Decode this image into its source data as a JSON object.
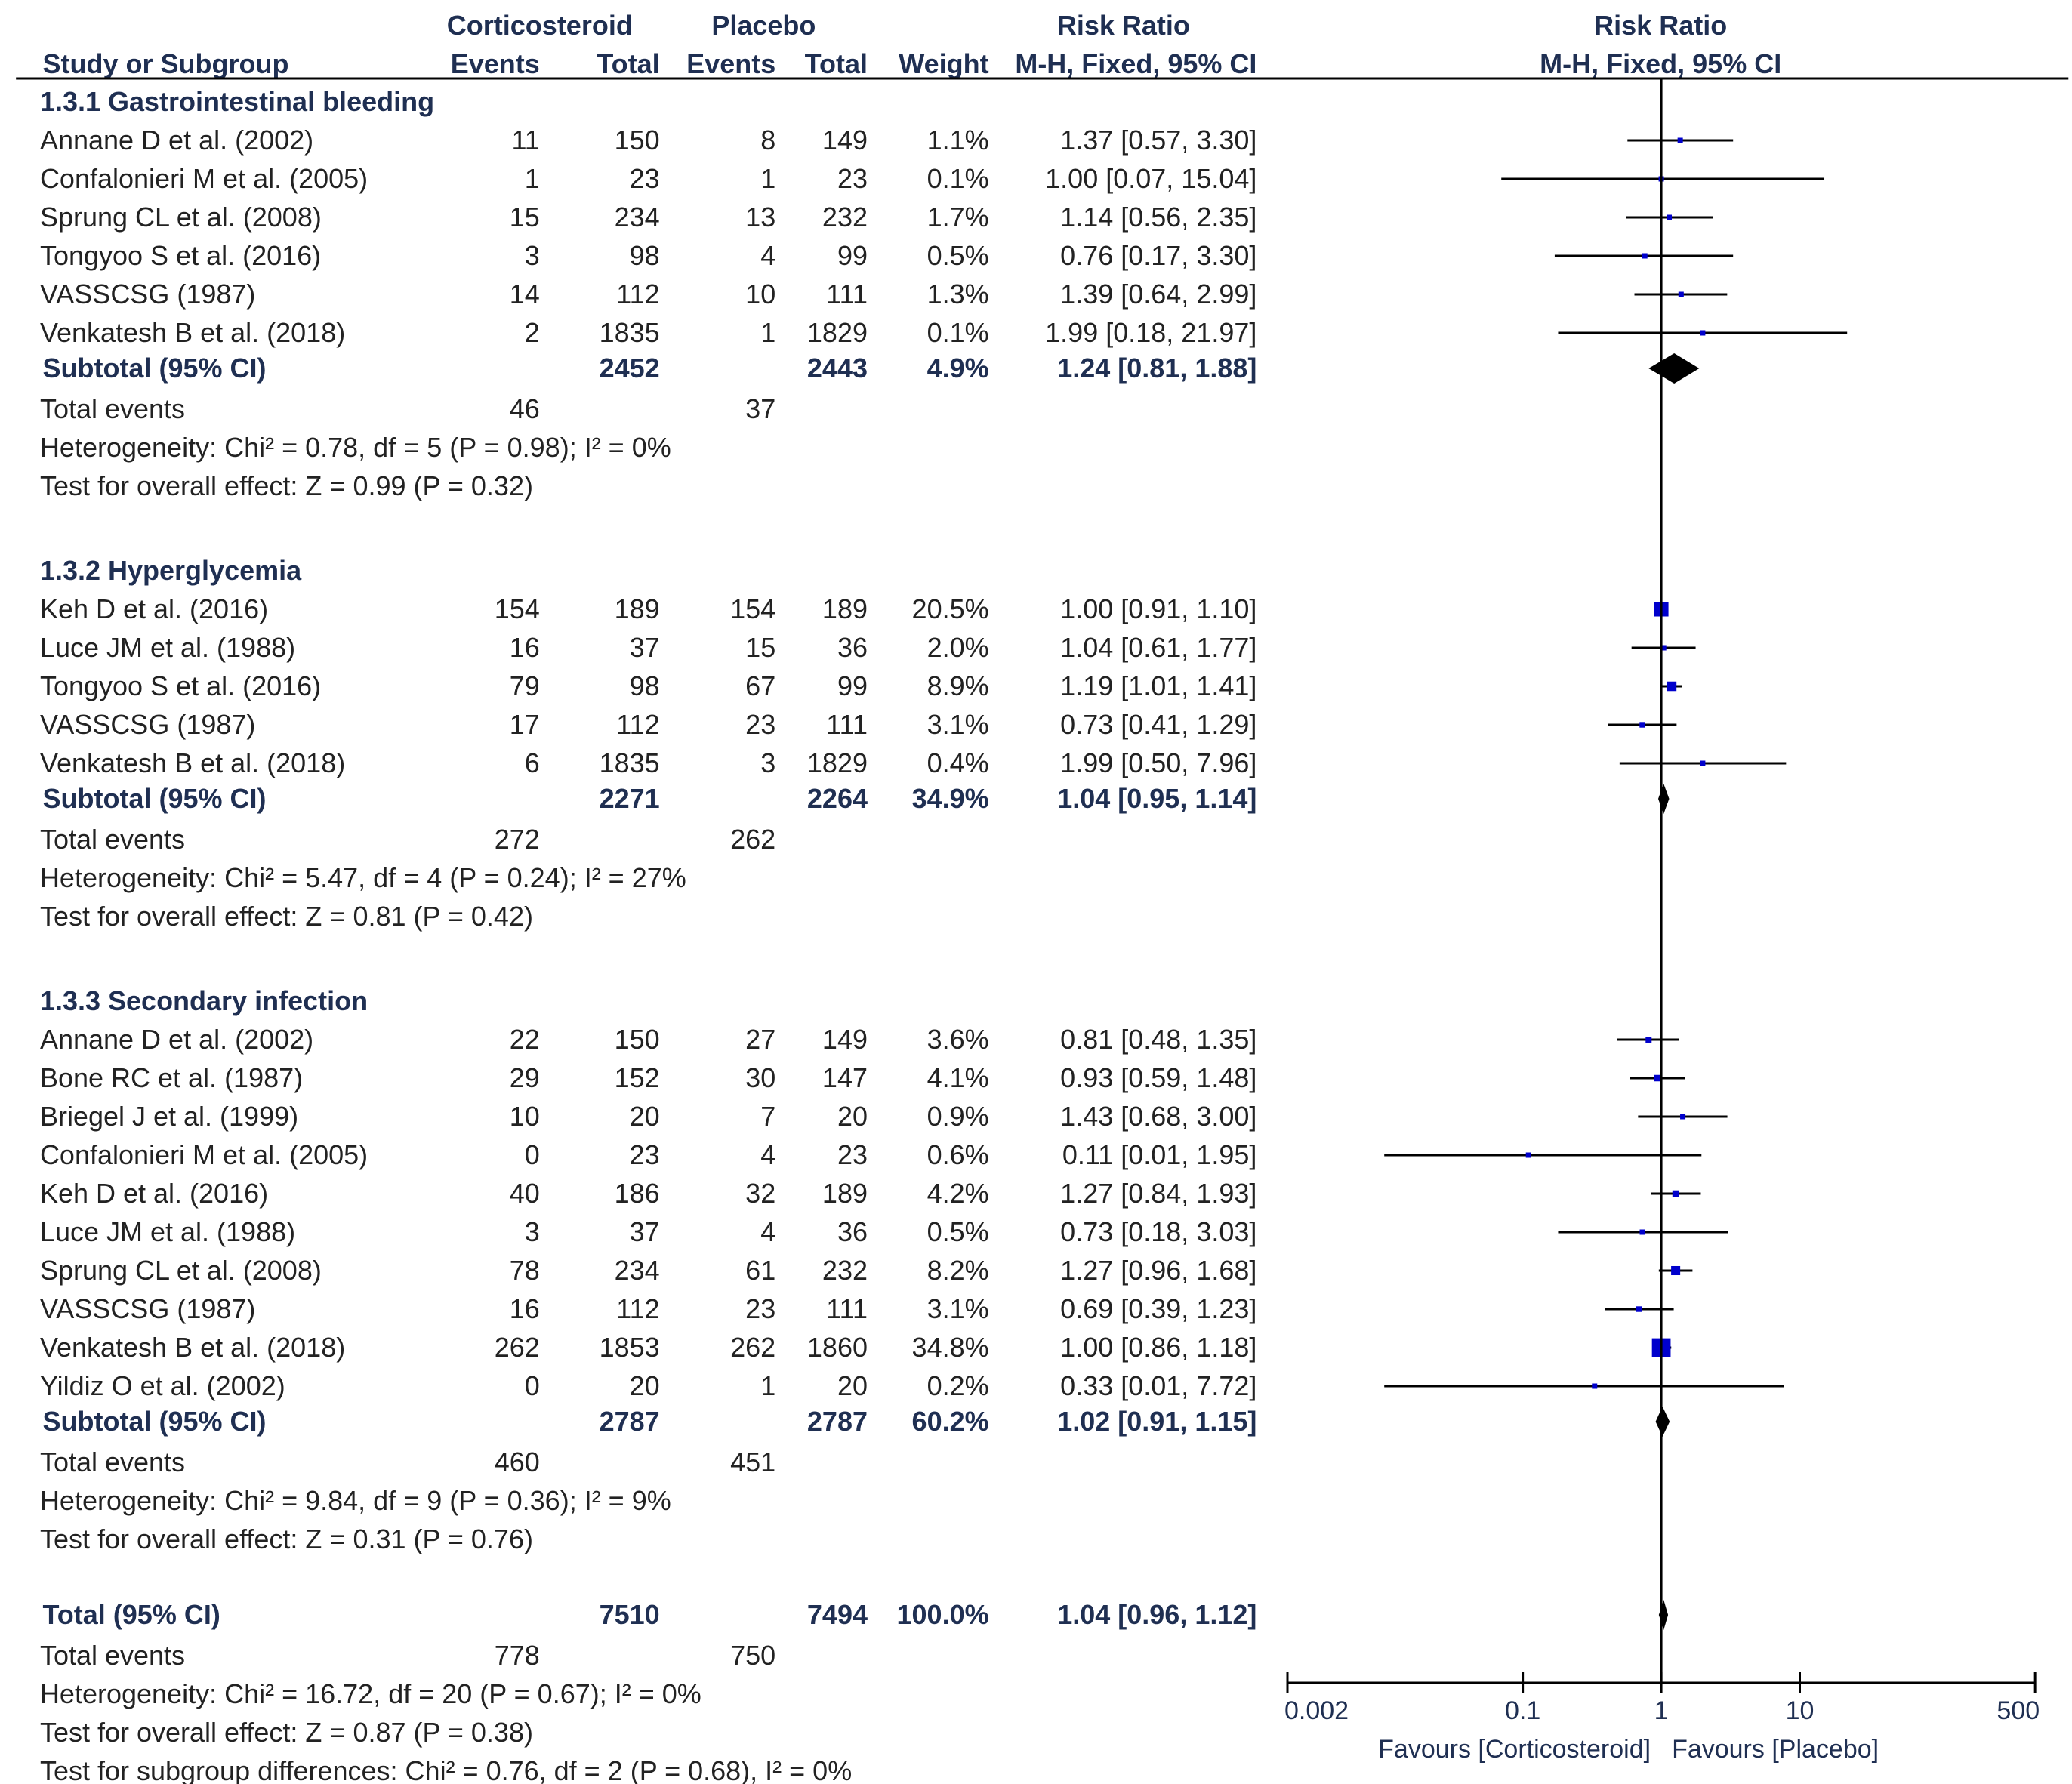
{
  "chart_data": {
    "type": "forest",
    "headers": {
      "group1": "Corticosteroid",
      "group2": "Placebo",
      "rr": "Risk Ratio",
      "plot_title": "Risk Ratio",
      "study": "Study or Subgroup",
      "events": "Events",
      "total": "Total",
      "weight": "Weight",
      "rr_method": "M-H, Fixed, 95% CI",
      "plot_method": "M-H, Fixed, 95% CI"
    },
    "subgroups": [
      {
        "title": "1.3.1 Gastrointestinal bleeding",
        "studies": [
          {
            "name": "Annane D et al. (2002)",
            "e1": "11",
            "t1": "150",
            "e2": "8",
            "t2": "149",
            "weight": "1.1%",
            "ci": "1.37 [0.57, 3.30]",
            "rr": 1.37,
            "lo": 0.57,
            "hi": 3.3,
            "w": 1.1
          },
          {
            "name": "Confalonieri M et al. (2005)",
            "e1": "1",
            "t1": "23",
            "e2": "1",
            "t2": "23",
            "weight": "0.1%",
            "ci": "1.00 [0.07, 15.04]",
            "rr": 1.0,
            "lo": 0.07,
            "hi": 15.04,
            "w": 0.1
          },
          {
            "name": "Sprung CL et al. (2008)",
            "e1": "15",
            "t1": "234",
            "e2": "13",
            "t2": "232",
            "weight": "1.7%",
            "ci": "1.14 [0.56, 2.35]",
            "rr": 1.14,
            "lo": 0.56,
            "hi": 2.35,
            "w": 1.7
          },
          {
            "name": "Tongyoo S et al. (2016)",
            "e1": "3",
            "t1": "98",
            "e2": "4",
            "t2": "99",
            "weight": "0.5%",
            "ci": "0.76 [0.17, 3.30]",
            "rr": 0.76,
            "lo": 0.17,
            "hi": 3.3,
            "w": 0.5
          },
          {
            "name": "VASSCSG (1987)",
            "e1": "14",
            "t1": "112",
            "e2": "10",
            "t2": "111",
            "weight": "1.3%",
            "ci": "1.39 [0.64, 2.99]",
            "rr": 1.39,
            "lo": 0.64,
            "hi": 2.99,
            "w": 1.3
          },
          {
            "name": "Venkatesh B et al. (2018)",
            "e1": "2",
            "t1": "1835",
            "e2": "1",
            "t2": "1829",
            "weight": "0.1%",
            "ci": "1.99 [0.18, 21.97]",
            "rr": 1.99,
            "lo": 0.18,
            "hi": 21.97,
            "w": 0.1
          }
        ],
        "subtotal": {
          "label": "Subtotal (95% CI)",
          "t1": "2452",
          "t2": "2443",
          "weight": "4.9%",
          "ci": "1.24 [0.81, 1.88]",
          "rr": 1.24,
          "lo": 0.81,
          "hi": 1.88
        },
        "total_events": {
          "label": "Total events",
          "e1": "46",
          "e2": "37"
        },
        "heterogeneity": "Heterogeneity: Chi² = 0.78, df = 5 (P = 0.98); I² = 0%",
        "overall": "Test for overall effect: Z = 0.99 (P = 0.32)"
      },
      {
        "title": "1.3.2 Hyperglycemia",
        "studies": [
          {
            "name": "Keh D et al. (2016)",
            "e1": "154",
            "t1": "189",
            "e2": "154",
            "t2": "189",
            "weight": "20.5%",
            "ci": "1.00 [0.91, 1.10]",
            "rr": 1.0,
            "lo": 0.91,
            "hi": 1.1,
            "w": 20.5
          },
          {
            "name": "Luce JM et al. (1988)",
            "e1": "16",
            "t1": "37",
            "e2": "15",
            "t2": "36",
            "weight": "2.0%",
            "ci": "1.04 [0.61, 1.77]",
            "rr": 1.04,
            "lo": 0.61,
            "hi": 1.77,
            "w": 2.0
          },
          {
            "name": "Tongyoo S et al. (2016)",
            "e1": "79",
            "t1": "98",
            "e2": "67",
            "t2": "99",
            "weight": "8.9%",
            "ci": "1.19 [1.01, 1.41]",
            "rr": 1.19,
            "lo": 1.01,
            "hi": 1.41,
            "w": 8.9
          },
          {
            "name": "VASSCSG (1987)",
            "e1": "17",
            "t1": "112",
            "e2": "23",
            "t2": "111",
            "weight": "3.1%",
            "ci": "0.73 [0.41, 1.29]",
            "rr": 0.73,
            "lo": 0.41,
            "hi": 1.29,
            "w": 3.1
          },
          {
            "name": "Venkatesh B et al. (2018)",
            "e1": "6",
            "t1": "1835",
            "e2": "3",
            "t2": "1829",
            "weight": "0.4%",
            "ci": "1.99 [0.50, 7.96]",
            "rr": 1.99,
            "lo": 0.5,
            "hi": 7.96,
            "w": 0.4
          }
        ],
        "subtotal": {
          "label": "Subtotal (95% CI)",
          "t1": "2271",
          "t2": "2264",
          "weight": "34.9%",
          "ci": "1.04 [0.95, 1.14]",
          "rr": 1.04,
          "lo": 0.95,
          "hi": 1.14
        },
        "total_events": {
          "label": "Total events",
          "e1": "272",
          "e2": "262"
        },
        "heterogeneity": "Heterogeneity: Chi² = 5.47, df = 4 (P = 0.24); I² = 27%",
        "overall": "Test for overall effect: Z = 0.81 (P = 0.42)"
      },
      {
        "title": "1.3.3 Secondary infection",
        "studies": [
          {
            "name": "Annane D et al. (2002)",
            "e1": "22",
            "t1": "150",
            "e2": "27",
            "t2": "149",
            "weight": "3.6%",
            "ci": "0.81 [0.48, 1.35]",
            "rr": 0.81,
            "lo": 0.48,
            "hi": 1.35,
            "w": 3.6
          },
          {
            "name": "Bone RC et al. (1987)",
            "e1": "29",
            "t1": "152",
            "e2": "30",
            "t2": "147",
            "weight": "4.1%",
            "ci": "0.93 [0.59, 1.48]",
            "rr": 0.93,
            "lo": 0.59,
            "hi": 1.48,
            "w": 4.1
          },
          {
            "name": "Briegel J et al. (1999)",
            "e1": "10",
            "t1": "20",
            "e2": "7",
            "t2": "20",
            "weight": "0.9%",
            "ci": "1.43 [0.68, 3.00]",
            "rr": 1.43,
            "lo": 0.68,
            "hi": 3.0,
            "w": 0.9
          },
          {
            "name": "Confalonieri M et al. (2005)",
            "e1": "0",
            "t1": "23",
            "e2": "4",
            "t2": "23",
            "weight": "0.6%",
            "ci": "0.11 [0.01, 1.95]",
            "rr": 0.11,
            "lo": 0.01,
            "hi": 1.95,
            "w": 0.6
          },
          {
            "name": "Keh D et al. (2016)",
            "e1": "40",
            "t1": "186",
            "e2": "32",
            "t2": "189",
            "weight": "4.2%",
            "ci": "1.27 [0.84, 1.93]",
            "rr": 1.27,
            "lo": 0.84,
            "hi": 1.93,
            "w": 4.2
          },
          {
            "name": "Luce JM et al. (1988)",
            "e1": "3",
            "t1": "37",
            "e2": "4",
            "t2": "36",
            "weight": "0.5%",
            "ci": "0.73 [0.18, 3.03]",
            "rr": 0.73,
            "lo": 0.18,
            "hi": 3.03,
            "w": 0.5
          },
          {
            "name": "Sprung CL et al. (2008)",
            "e1": "78",
            "t1": "234",
            "e2": "61",
            "t2": "232",
            "weight": "8.2%",
            "ci": "1.27 [0.96, 1.68]",
            "rr": 1.27,
            "lo": 0.96,
            "hi": 1.68,
            "w": 8.2
          },
          {
            "name": "VASSCSG (1987)",
            "e1": "16",
            "t1": "112",
            "e2": "23",
            "t2": "111",
            "weight": "3.1%",
            "ci": "0.69 [0.39, 1.23]",
            "rr": 0.69,
            "lo": 0.39,
            "hi": 1.23,
            "w": 3.1
          },
          {
            "name": "Venkatesh B et al. (2018)",
            "e1": "262",
            "t1": "1853",
            "e2": "262",
            "t2": "1860",
            "weight": "34.8%",
            "ci": "1.00 [0.86, 1.18]",
            "rr": 1.0,
            "lo": 0.86,
            "hi": 1.18,
            "w": 34.8
          },
          {
            "name": "Yildiz O et al. (2002)",
            "e1": "0",
            "t1": "20",
            "e2": "1",
            "t2": "20",
            "weight": "0.2%",
            "ci": "0.33 [0.01, 7.72]",
            "rr": 0.33,
            "lo": 0.01,
            "hi": 7.72,
            "w": 0.2
          }
        ],
        "subtotal": {
          "label": "Subtotal (95% CI)",
          "t1": "2787",
          "t2": "2787",
          "weight": "60.2%",
          "ci": "1.02 [0.91, 1.15]",
          "rr": 1.02,
          "lo": 0.91,
          "hi": 1.15
        },
        "total_events": {
          "label": "Total events",
          "e1": "460",
          "e2": "451"
        },
        "heterogeneity": "Heterogeneity: Chi² = 9.84, df = 9 (P = 0.36); I² = 9%",
        "overall": "Test for overall effect: Z = 0.31 (P = 0.76)"
      }
    ],
    "total": {
      "label": "Total (95% CI)",
      "t1": "7510",
      "t2": "7494",
      "weight": "100.0%",
      "ci": "1.04 [0.96, 1.12]",
      "rr": 1.04,
      "lo": 0.96,
      "hi": 1.12
    },
    "total_events": {
      "label": "Total events",
      "e1": "778",
      "e2": "750"
    },
    "heterogeneity": "Heterogeneity: Chi² = 16.72, df = 20 (P = 0.67); I² = 0%",
    "overall": "Test for overall effect: Z = 0.87 (P = 0.38)",
    "subgroup_diff": "Test for subgroup differences: Chi² = 0.76, df = 2 (P = 0.68), I² = 0%",
    "axis": {
      "scale": "log",
      "xlim": [
        0.002,
        500
      ],
      "ticks": [
        0.002,
        0.1,
        1,
        10,
        500
      ],
      "tick_labels": [
        "0.002",
        "0.1",
        "1",
        "10",
        "500"
      ],
      "favours_left": "Favours [Corticosteroid]",
      "favours_right": "Favours [Placebo]"
    },
    "colors": {
      "text": "#222222",
      "header": "#1f2f52",
      "square": "#0000cc",
      "diamond": "#000000",
      "line": "#000000"
    }
  }
}
